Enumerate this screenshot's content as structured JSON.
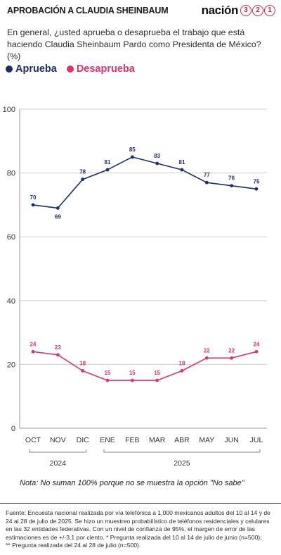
{
  "header": {
    "title": "APROBACIÓN A CLAUDIA SHEINBAUM",
    "brand_word": "nación",
    "brand_digits": [
      "3",
      "2",
      "1"
    ]
  },
  "subtitle": "En general, ¿usted aprueba o desaprueba el trabajo que está haciendo Claudia Sheinbaum Pardo como Presidenta de México?  (%)",
  "colors": {
    "aprueba": "#1f2d6e",
    "desaprueba": "#e0336b",
    "brand": "#d7263d"
  },
  "chart_data": {
    "type": "line",
    "categories": [
      "OCT",
      "NOV",
      "DIC",
      "ENE",
      "FEB",
      "MAR",
      "ABR",
      "MAY",
      "JUN",
      "JUL"
    ],
    "year_groups": [
      {
        "label": "2024",
        "from": "OCT",
        "to": "DIC"
      },
      {
        "label": "2025",
        "from": "ENE",
        "to": "JUL"
      }
    ],
    "series": [
      {
        "name": "Aprueba",
        "values": [
          70,
          69,
          78,
          81,
          85,
          83,
          81,
          77,
          76,
          75
        ]
      },
      {
        "name": "Desaprueba",
        "values": [
          24,
          23,
          18,
          15,
          15,
          15,
          18,
          22,
          22,
          24
        ]
      }
    ],
    "ylim": [
      0,
      100
    ],
    "yticks": [
      0,
      20,
      40,
      60,
      80,
      100
    ],
    "grid": true,
    "legend": "top-left"
  },
  "note": "Nota: No suman 100% porque no se muestra la opción \"No sabe\"",
  "footer": {
    "fuente": "Fuente:  Encuesta nacional realizada por vía telefónica a 1,000 mexicanos adultos del 10 al 14 y de 24 al 28 de julio de 2025. Se hizo un muestreo probabilístico de teléfonos residenciales y celulares en las 32 entidades federativas. Con un nivel de confianza de 95%, el margen de error de las estimaciones es de +/-3.1 por ciento. * Pregunta realizada del 10 al 14 de julio de junio (n=500);",
    "note2": "** Pregunta realizada del 24 al 28 de julio (n=500)."
  }
}
